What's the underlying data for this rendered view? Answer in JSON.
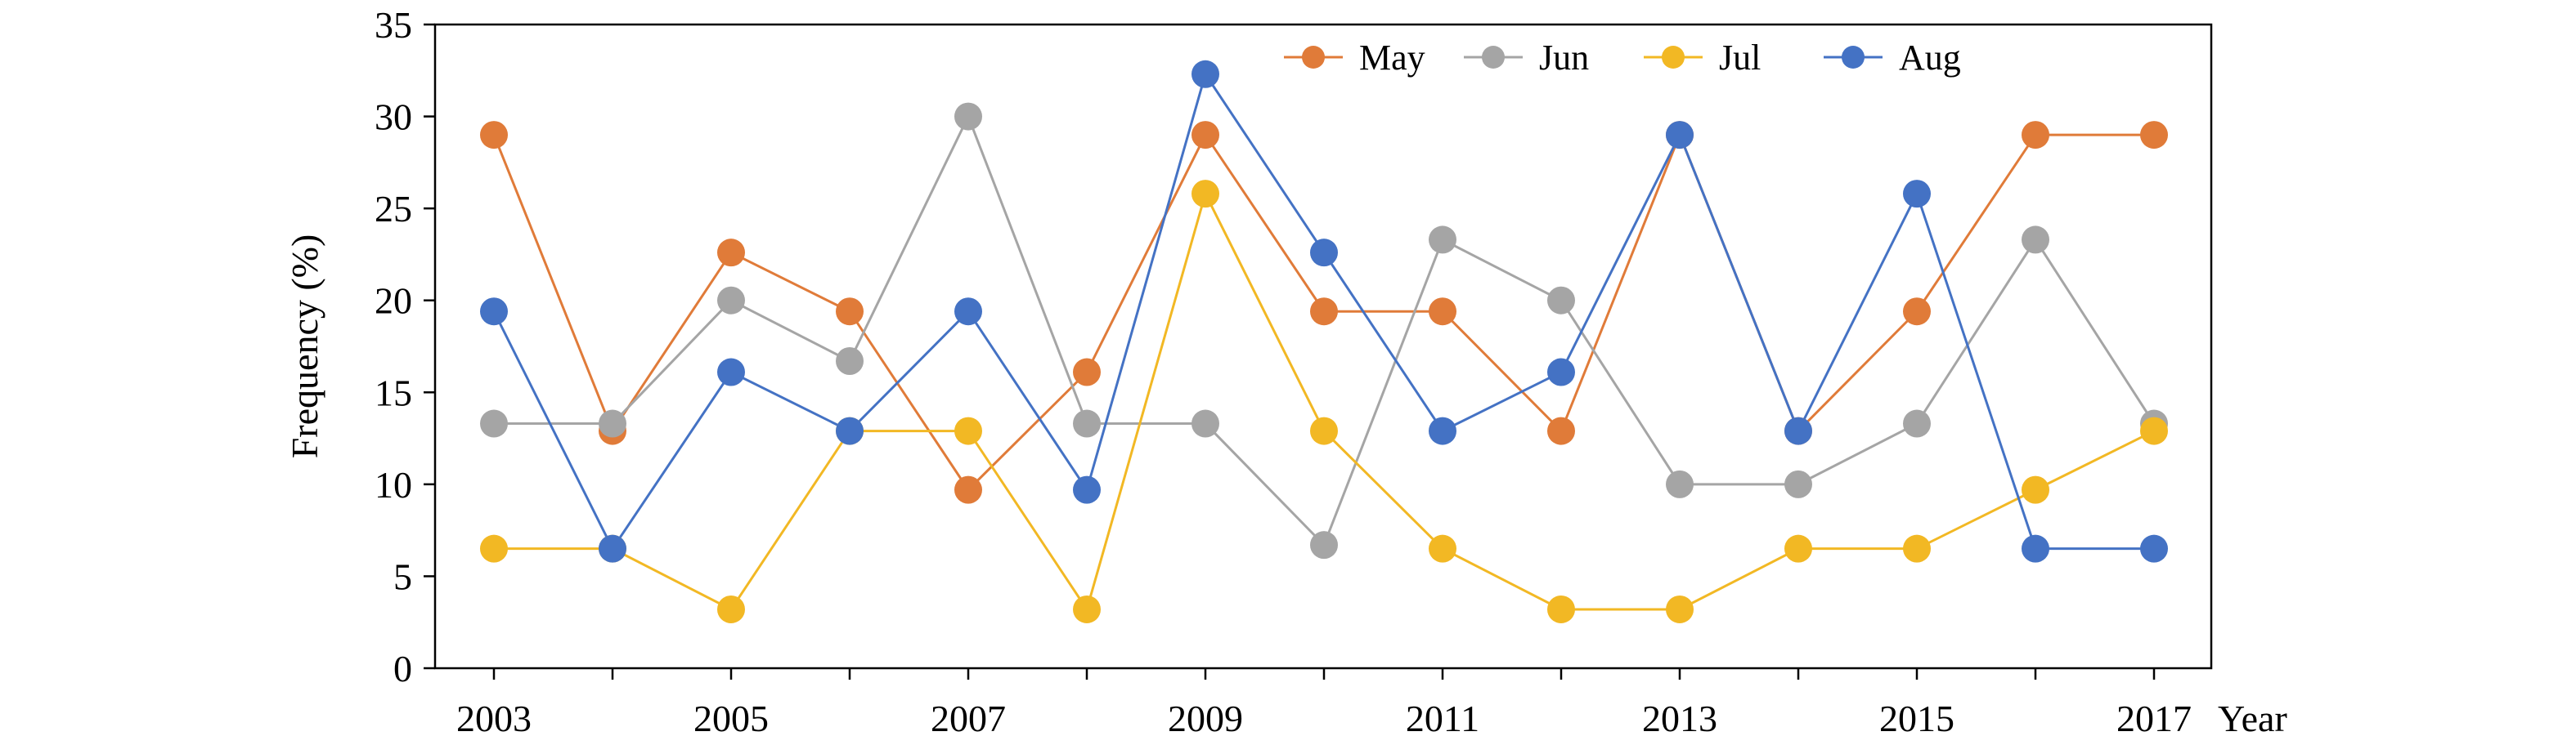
{
  "chart_data": {
    "type": "line",
    "title": "",
    "xlabel": "Year",
    "ylabel": "Frequency (%)",
    "ylim": [
      0,
      35
    ],
    "yticks": [
      0,
      5,
      10,
      15,
      20,
      25,
      30,
      35
    ],
    "x": [
      2003,
      2004,
      2005,
      2006,
      2007,
      2008,
      2009,
      2010,
      2011,
      2012,
      2013,
      2014,
      2015,
      2016,
      2017
    ],
    "xtick_labels": [
      "2003",
      "2005",
      "2007",
      "2009",
      "2011",
      "2013",
      "2015",
      "2017"
    ],
    "xtick_values": [
      2003,
      2005,
      2007,
      2009,
      2011,
      2013,
      2015,
      2017
    ],
    "grid": false,
    "legend": "top-center",
    "series": [
      {
        "name": "May",
        "color": "#E07B39",
        "values": [
          29.0,
          12.9,
          22.6,
          19.4,
          9.7,
          16.1,
          29.0,
          19.4,
          19.4,
          12.9,
          29.0,
          12.9,
          19.4,
          29.0,
          29.0
        ]
      },
      {
        "name": "Jun",
        "color": "#A5A5A5",
        "values": [
          13.3,
          13.3,
          20.0,
          16.7,
          30.0,
          13.3,
          13.3,
          6.7,
          23.3,
          20.0,
          10.0,
          10.0,
          13.3,
          23.3,
          13.3
        ]
      },
      {
        "name": "Jul",
        "color": "#F2B824",
        "values": [
          6.5,
          6.5,
          3.2,
          12.9,
          12.9,
          3.2,
          25.8,
          12.9,
          6.5,
          3.2,
          3.2,
          6.5,
          6.5,
          9.7,
          12.9
        ]
      },
      {
        "name": "Aug",
        "color": "#4472C4",
        "values": [
          19.4,
          6.5,
          16.1,
          12.9,
          19.4,
          9.7,
          32.3,
          22.6,
          12.9,
          16.1,
          29.0,
          12.9,
          25.8,
          6.5,
          6.5
        ]
      }
    ]
  }
}
